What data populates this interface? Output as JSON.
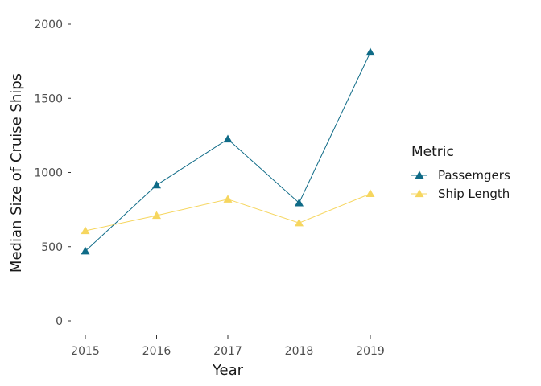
{
  "chart_data": {
    "type": "line",
    "title": "",
    "xlabel": "Year",
    "ylabel": "Median Size of Cruise Ships",
    "x": [
      2015,
      2016,
      2017,
      2018,
      2019
    ],
    "x_tick_labels": [
      "2015",
      "2016",
      "2017",
      "2018",
      "2019"
    ],
    "ylim": [
      0,
      2000
    ],
    "y_ticks": [
      0,
      500,
      1000,
      1500,
      2000
    ],
    "y_tick_labels": [
      "0",
      "500",
      "1000",
      "1500",
      "2000"
    ],
    "grid": false,
    "legend": {
      "title": "Metric",
      "position": "right"
    },
    "series": [
      {
        "name": "Passemgers",
        "values": [
          470,
          915,
          1225,
          795,
          1810
        ],
        "color": "#0f6b87",
        "marker": "triangle"
      },
      {
        "name": "Ship Length",
        "values": [
          607,
          710,
          820,
          660,
          857
        ],
        "color": "#f6d65f",
        "marker": "triangle"
      }
    ]
  }
}
